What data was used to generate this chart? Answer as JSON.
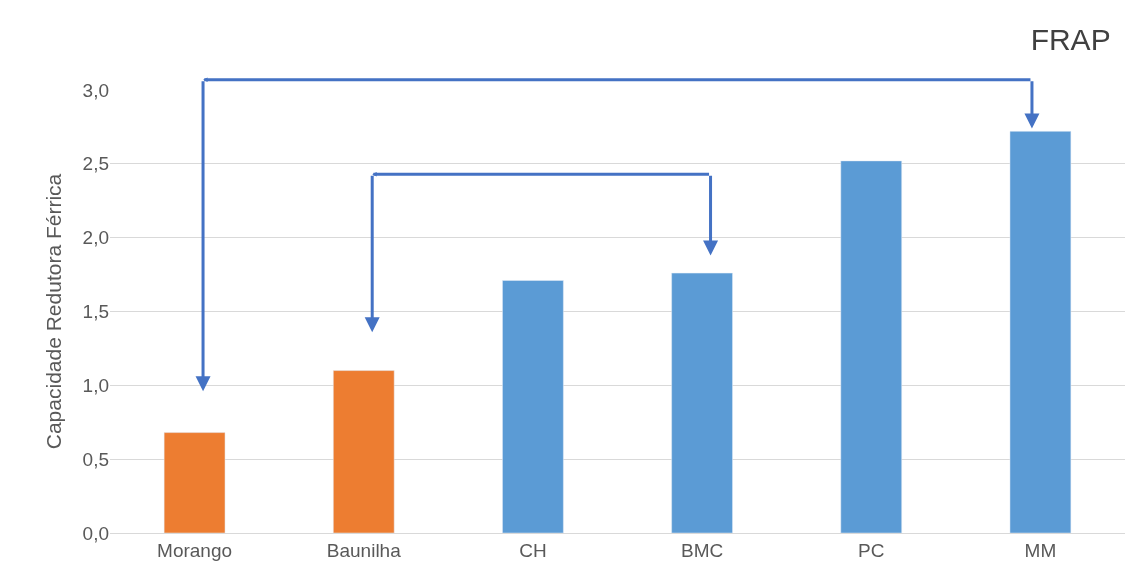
{
  "chart_data": {
    "type": "bar",
    "title": "FRAP",
    "ylabel": "Capacidade Redutora Férrica",
    "categories": [
      "Morango",
      "Baunilha",
      "CH",
      "BMC",
      "PC",
      "MM"
    ],
    "values": [
      0.68,
      1.1,
      1.71,
      1.76,
      2.52,
      2.72
    ],
    "colors": [
      "#ed7d31",
      "#ed7d31",
      "#5b9bd5",
      "#5b9bd5",
      "#5b9bd5",
      "#5b9bd5"
    ],
    "ylim": [
      0,
      3
    ],
    "yticks": [
      {
        "value": 0,
        "label": "0,0"
      },
      {
        "value": 0.5,
        "label": "0,5"
      },
      {
        "value": 1,
        "label": "1,0"
      },
      {
        "value": 1.5,
        "label": "1,5"
      },
      {
        "value": 2,
        "label": "2,0"
      },
      {
        "value": 2.5,
        "label": "2,5"
      },
      {
        "value": 3,
        "label": "3,0"
      }
    ],
    "grid": "y"
  }
}
